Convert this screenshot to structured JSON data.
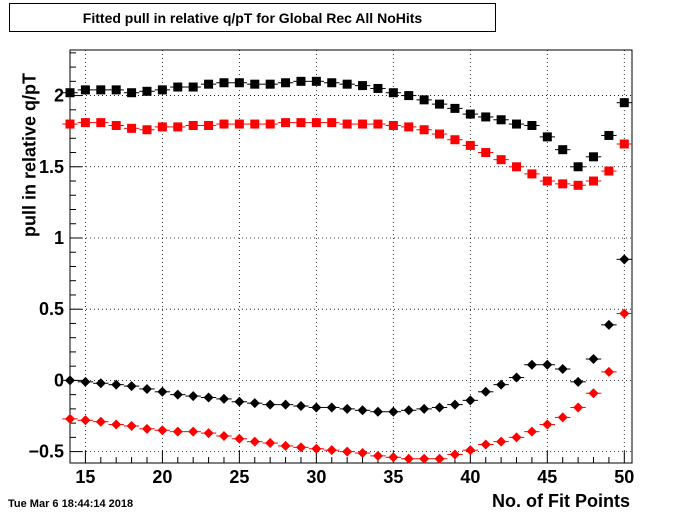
{
  "chart_data": {
    "type": "scatter",
    "title": "Fitted pull in relative q/pT for Global Rec All NoHits",
    "xlabel": "No. of Fit Points",
    "ylabel": "pull in relative q/pT",
    "timestamp": "Tue Mar  6 18:44:14 2018",
    "xlim": [
      14,
      50.5
    ],
    "ylim": [
      -0.58,
      2.32
    ],
    "grid": true,
    "x_ticks": [
      15,
      20,
      25,
      30,
      35,
      40,
      45,
      50
    ],
    "y_ticks": [
      -0.5,
      0,
      0.5,
      1,
      1.5,
      2
    ],
    "y_tick_labels": [
      "−0.5",
      "0",
      "0.5",
      "1",
      "1.5",
      "2"
    ],
    "x": [
      14,
      15,
      16,
      17,
      18,
      19,
      20,
      21,
      22,
      23,
      24,
      25,
      26,
      27,
      28,
      29,
      30,
      31,
      32,
      33,
      34,
      35,
      36,
      37,
      38,
      39,
      40,
      41,
      42,
      43,
      44,
      45,
      46,
      47,
      48,
      49,
      50
    ],
    "series": [
      {
        "marker": "square",
        "color": "#000000",
        "values": [
          2.02,
          2.04,
          2.04,
          2.04,
          2.02,
          2.03,
          2.04,
          2.06,
          2.06,
          2.08,
          2.09,
          2.09,
          2.08,
          2.08,
          2.09,
          2.1,
          2.1,
          2.09,
          2.08,
          2.07,
          2.05,
          2.02,
          2.0,
          1.97,
          1.94,
          1.91,
          1.87,
          1.85,
          1.83,
          1.8,
          1.79,
          1.71,
          1.62,
          1.5,
          1.57,
          1.72,
          1.95
        ]
      },
      {
        "marker": "square",
        "color": "#ff0000",
        "values": [
          1.8,
          1.81,
          1.81,
          1.79,
          1.77,
          1.76,
          1.78,
          1.78,
          1.79,
          1.79,
          1.8,
          1.8,
          1.8,
          1.8,
          1.81,
          1.81,
          1.81,
          1.81,
          1.8,
          1.8,
          1.8,
          1.79,
          1.78,
          1.76,
          1.73,
          1.69,
          1.65,
          1.6,
          1.55,
          1.5,
          1.45,
          1.4,
          1.38,
          1.37,
          1.4,
          1.47,
          1.66
        ]
      },
      {
        "marker": "diamond",
        "color": "#000000",
        "values": [
          0.0,
          -0.01,
          -0.02,
          -0.03,
          -0.04,
          -0.06,
          -0.08,
          -0.1,
          -0.11,
          -0.12,
          -0.13,
          -0.15,
          -0.16,
          -0.17,
          -0.17,
          -0.18,
          -0.19,
          -0.19,
          -0.2,
          -0.21,
          -0.22,
          -0.22,
          -0.21,
          -0.2,
          -0.19,
          -0.17,
          -0.14,
          -0.08,
          -0.03,
          0.02,
          0.11,
          0.11,
          0.08,
          -0.01,
          0.15,
          0.39,
          0.85
        ]
      },
      {
        "marker": "diamond",
        "color": "#ff0000",
        "values": [
          -0.27,
          -0.28,
          -0.29,
          -0.31,
          -0.32,
          -0.34,
          -0.35,
          -0.36,
          -0.36,
          -0.37,
          -0.39,
          -0.41,
          -0.43,
          -0.44,
          -0.46,
          -0.47,
          -0.48,
          -0.49,
          -0.5,
          -0.51,
          -0.53,
          -0.54,
          -0.55,
          -0.55,
          -0.55,
          -0.52,
          -0.49,
          -0.45,
          -0.43,
          -0.4,
          -0.36,
          -0.31,
          -0.26,
          -0.19,
          -0.09,
          0.06,
          0.47
        ]
      }
    ]
  }
}
